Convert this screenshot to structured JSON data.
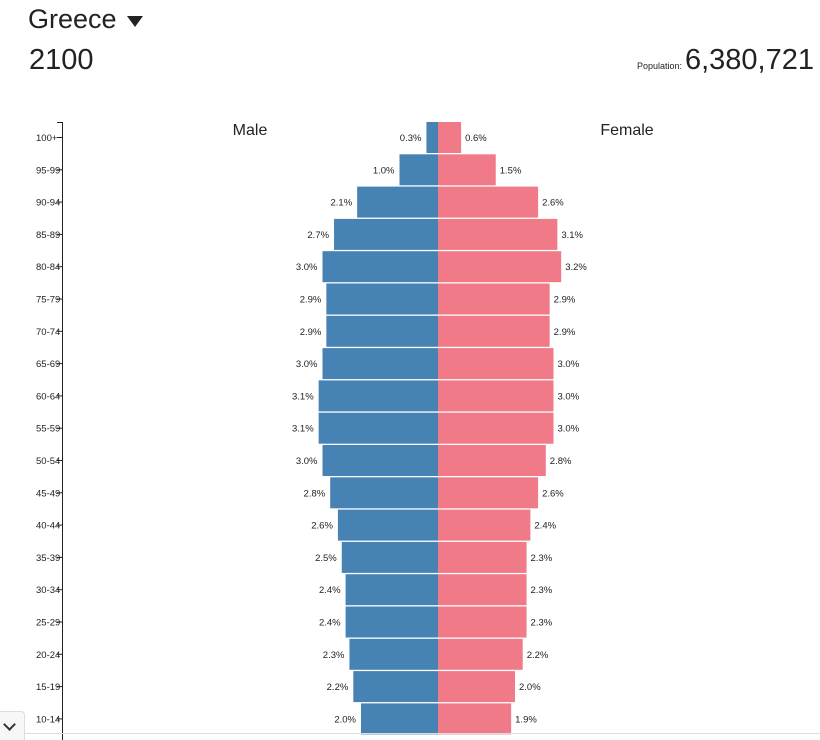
{
  "header": {
    "country": "Greece",
    "year": "2100",
    "population_label": "Population:",
    "population_value": "6,380,721"
  },
  "icons": {
    "country_dropdown": "caret-down-icon",
    "collapse_toggle": "chevron-down-icon"
  },
  "colors": {
    "male": "#4682b4",
    "female": "#f07a88"
  },
  "chart_data": {
    "type": "bar",
    "orientation": "horizontal-pyramid",
    "categories": [
      "100+",
      "95-99",
      "90-94",
      "85-89",
      "80-84",
      "75-79",
      "70-74",
      "65-69",
      "60-64",
      "55-59",
      "50-54",
      "45-49",
      "40-44",
      "35-39",
      "30-34",
      "25-29",
      "20-24",
      "15-19",
      "10-14"
    ],
    "series": [
      {
        "name": "Male",
        "values": [
          0.3,
          1.0,
          2.1,
          2.7,
          3.0,
          2.9,
          2.9,
          3.0,
          3.1,
          3.1,
          3.0,
          2.8,
          2.6,
          2.5,
          2.4,
          2.4,
          2.3,
          2.2,
          2.0
        ],
        "labels": [
          "0.3%",
          "1.0%",
          "2.1%",
          "2.7%",
          "3.0%",
          "2.9%",
          "2.9%",
          "3.0%",
          "3.1%",
          "3.1%",
          "3.0%",
          "2.8%",
          "2.6%",
          "2.5%",
          "2.4%",
          "2.4%",
          "2.3%",
          "2.2%",
          "2.0%"
        ]
      },
      {
        "name": "Female",
        "values": [
          0.6,
          1.5,
          2.6,
          3.1,
          3.2,
          2.9,
          2.9,
          3.0,
          3.0,
          3.0,
          2.8,
          2.6,
          2.4,
          2.3,
          2.3,
          2.3,
          2.2,
          2.0,
          1.9
        ],
        "labels": [
          "0.6%",
          "1.5%",
          "2.6%",
          "3.1%",
          "3.2%",
          "2.9%",
          "2.9%",
          "3.0%",
          "3.0%",
          "3.0%",
          "2.8%",
          "2.6%",
          "2.4%",
          "2.3%",
          "2.3%",
          "2.3%",
          "2.2%",
          "2.0%",
          "1.9%"
        ]
      }
    ],
    "unit": "%",
    "grid": false
  }
}
